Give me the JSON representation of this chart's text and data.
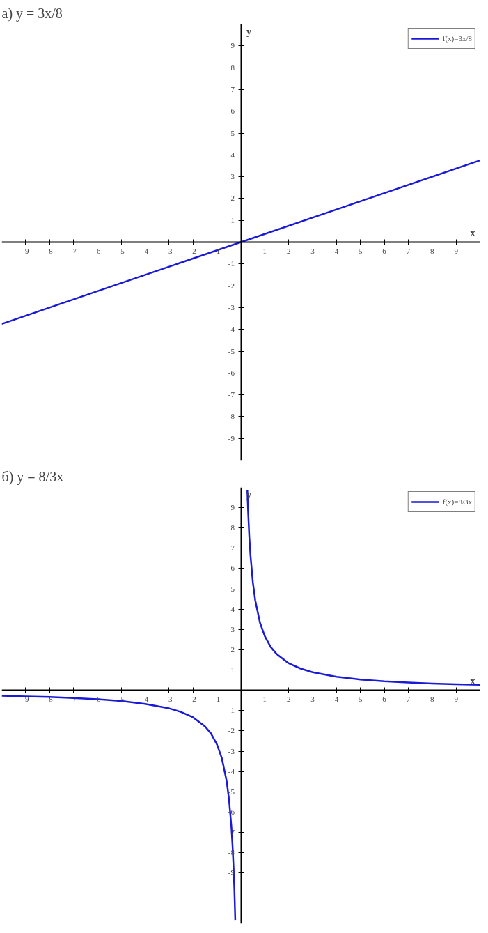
{
  "chart_data": [
    {
      "type": "line",
      "title": "а) y = 3x/8",
      "xlabel": "x",
      "ylabel": "y",
      "xlim": [
        -10,
        10
      ],
      "ylim": [
        -10,
        10
      ],
      "xticks": [
        -9,
        -8,
        -7,
        -6,
        -5,
        -4,
        -3,
        -2,
        -1,
        1,
        2,
        3,
        4,
        5,
        6,
        7,
        8,
        9
      ],
      "yticks": [
        -9,
        -8,
        -7,
        -6,
        -5,
        -4,
        -3,
        -2,
        -1,
        1,
        2,
        3,
        4,
        5,
        6,
        7,
        8,
        9
      ],
      "grid": false,
      "legend": "top right",
      "series": [
        {
          "name": "f(x)=3x/8",
          "color": "#1a1ad6",
          "x": [
            -10,
            -5,
            0,
            5,
            10
          ],
          "values": [
            -3.75,
            -1.875,
            0,
            1.875,
            3.75
          ]
        }
      ]
    },
    {
      "type": "line",
      "title": "б) y = 8/3x",
      "xlabel": "x",
      "ylabel": "y",
      "xlim": [
        -10,
        10
      ],
      "ylim": [
        -11.5,
        10
      ],
      "xticks": [
        -9,
        -8,
        -7,
        -6,
        -5,
        -4,
        -3,
        -2,
        -1,
        1,
        2,
        3,
        4,
        5,
        6,
        7,
        8,
        9
      ],
      "yticks": [
        -9,
        -8,
        -7,
        -6,
        -5,
        -4,
        -3,
        -2,
        -1,
        1,
        2,
        3,
        4,
        5,
        6,
        7,
        8,
        9
      ],
      "grid": false,
      "legend": "top right",
      "series": [
        {
          "name": "f(x)=8/3x",
          "color": "#1a1ad6",
          "x": [
            -10,
            -9,
            -8,
            -7,
            -6,
            -5,
            -4,
            -3,
            -2.5,
            -2,
            -1.5,
            -1.25,
            -1,
            -0.8,
            -0.6,
            -0.5,
            -0.4,
            -0.35,
            -0.3,
            -0.27,
            -0.235,
            0,
            0.27,
            0.3,
            0.35,
            0.4,
            0.5,
            0.6,
            0.8,
            1,
            1.25,
            1.5,
            2,
            2.5,
            3,
            4,
            5,
            6,
            7,
            8,
            9,
            10
          ],
          "values": [
            -0.27,
            -0.3,
            -0.33,
            -0.38,
            -0.44,
            -0.53,
            -0.67,
            -0.89,
            -1.07,
            -1.33,
            -1.78,
            -2.13,
            -2.67,
            -3.33,
            -4.44,
            -5.33,
            -6.67,
            -7.62,
            -8.89,
            -9.88,
            -11.35,
            null,
            9.88,
            8.89,
            7.62,
            6.67,
            5.33,
            4.44,
            3.33,
            2.67,
            2.13,
            1.78,
            1.33,
            1.07,
            0.89,
            0.67,
            0.53,
            0.44,
            0.38,
            0.33,
            0.3,
            0.27
          ]
        }
      ]
    }
  ]
}
